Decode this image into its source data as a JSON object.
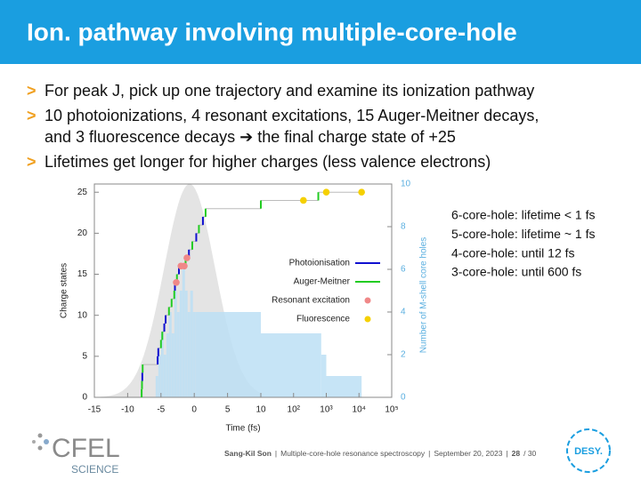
{
  "slide": {
    "title": "Ion. pathway involving multiple-core-hole",
    "bullet_marker": ">",
    "bullets": [
      [
        "For peak J, pick up one trajectory and examine its ionization pathway"
      ],
      [
        "10 photoionizations, 4 resonant excitations, 15 Auger-Meitner decays,",
        "and 3 fluorescence decays ➔ the final charge state of +25"
      ],
      [
        "Lifetimes get longer for higher charges (less valence electrons)"
      ]
    ],
    "notes": [
      "6-core-hole: lifetime < 1 fs",
      "5-core-hole: lifetime ~ 1 fs",
      "4-core-hole: until 12 fs",
      "3-core-hole: until 600 fs"
    ],
    "footer": [
      "Sang-Kil Son",
      "|",
      "Multiple-core-hole resonance spectroscopy",
      "|",
      "September 20, 2023",
      "|",
      "28",
      "/ 30"
    ],
    "logo_left": [
      "CFEL",
      "SCIENCE"
    ],
    "logo_right": "DESY."
  },
  "chart_data": {
    "type": "step",
    "xlabel": "Time (fs)",
    "ylabel": "Charge states",
    "y2label": "Number of M-shell core holes",
    "xlim": [
      -15,
      100000
    ],
    "x_log_from": 10,
    "xticks": [
      -15,
      -10,
      -5,
      0,
      5,
      10,
      {
        "value": 100,
        "label": "10²"
      },
      {
        "value": 1000,
        "label": "10³"
      },
      {
        "value": 10000,
        "label": "10⁴"
      },
      {
        "value": 100000,
        "label": "10⁵"
      }
    ],
    "ylim": [
      0,
      26
    ],
    "yticks": [
      0,
      5,
      10,
      15,
      20,
      25
    ],
    "y2lim": [
      0,
      10
    ],
    "y2ticks": [
      0,
      2,
      4,
      6,
      8,
      10
    ],
    "y2color": "#5aafe0",
    "legend": "right",
    "pulse": {
      "center": -0.7,
      "fwhm": 9,
      "peak": 26,
      "color": "#e4e4e4"
    },
    "histogram": {
      "axis": "y2",
      "color": "#bcdff5",
      "bins": [
        -5.8,
        -5.4,
        -5,
        -4.6,
        -4.2,
        -3.8,
        -3.4,
        -3,
        -2.6,
        -2.2,
        -1.8,
        -1.4,
        -1,
        -0.6,
        -0.2,
        0.2,
        10,
        700,
        1000,
        12000
      ],
      "counts": [
        1,
        2,
        3,
        2,
        3,
        4,
        3,
        5,
        4,
        5,
        6,
        5,
        4,
        5,
        4,
        4,
        3,
        2,
        1
      ]
    },
    "series": [
      {
        "name": "Photoionisation",
        "color": "#1010d0",
        "mark": "step",
        "x": [
          -7.8,
          -5.5,
          -5.4,
          -4.5,
          -4.3,
          -2.9,
          -2.3,
          -0.8,
          0.3,
          1.3
        ],
        "values": [
          3,
          5,
          6,
          9,
          10,
          14,
          16,
          18,
          20,
          22
        ]
      },
      {
        "name": "Auger-Meitner",
        "color": "#22cc22",
        "mark": "step",
        "x": [
          -7.9,
          -7.85,
          -7.75,
          -5.0,
          -4.8,
          -3.8,
          -3.4,
          -3.0,
          -2.6,
          -1.3,
          -0.3,
          0.7,
          1.7,
          10,
          570
        ],
        "values": [
          1,
          2,
          4,
          7,
          8,
          11,
          12,
          13,
          15,
          17,
          19,
          21,
          23,
          24,
          25
        ]
      },
      {
        "name": "Resonant excitation",
        "color": "#f08888",
        "mark": "dot",
        "x": [
          -2.7,
          -2.0,
          -1.5,
          -1.1
        ],
        "values": [
          14,
          16,
          16,
          17
        ]
      },
      {
        "name": "Fluorescence",
        "color": "#f5d000",
        "mark": "dot",
        "x": [
          200,
          1000,
          12000
        ],
        "values": [
          24,
          25,
          25
        ]
      }
    ]
  }
}
